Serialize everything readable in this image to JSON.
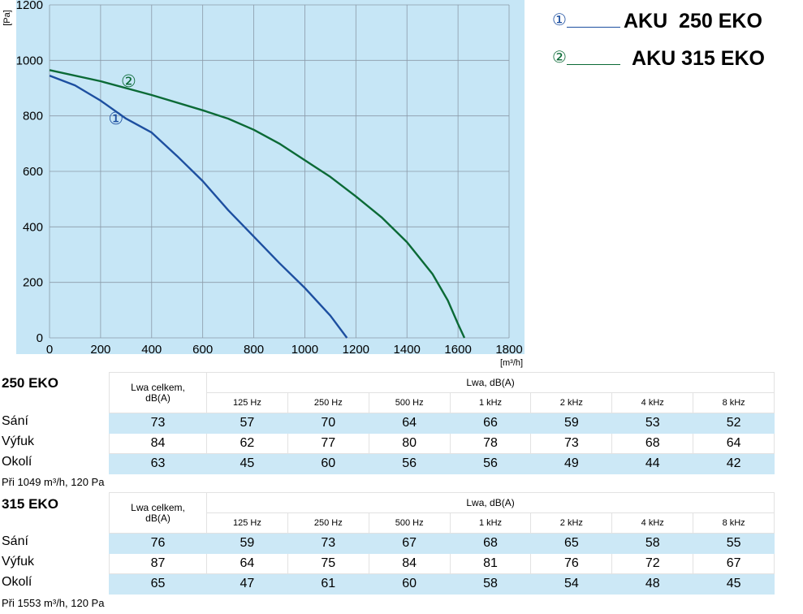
{
  "chart_data": {
    "type": "line",
    "ylabel": "[Pa]",
    "xlabel": "[m³/h]",
    "xlim": [
      0,
      1800
    ],
    "ylim": [
      0,
      1200
    ],
    "xticks": [
      0,
      200,
      400,
      600,
      800,
      1000,
      1200,
      1400,
      1600,
      1800
    ],
    "yticks": [
      0,
      200,
      400,
      600,
      800,
      1000,
      1200
    ],
    "grid": true,
    "plot_background": "#c6e6f6",
    "series": [
      {
        "marker": "①",
        "color": "#1d4fa0",
        "points": [
          [
            0,
            945
          ],
          [
            100,
            910
          ],
          [
            200,
            855
          ],
          [
            300,
            790
          ],
          [
            400,
            740
          ],
          [
            500,
            655
          ],
          [
            600,
            565
          ],
          [
            700,
            460
          ],
          [
            800,
            365
          ],
          [
            900,
            270
          ],
          [
            1000,
            180
          ],
          [
            1100,
            80
          ],
          [
            1165,
            0
          ]
        ]
      },
      {
        "marker": "②",
        "color": "#0b6a36",
        "points": [
          [
            0,
            965
          ],
          [
            200,
            925
          ],
          [
            400,
            875
          ],
          [
            600,
            820
          ],
          [
            700,
            790
          ],
          [
            800,
            750
          ],
          [
            900,
            700
          ],
          [
            1000,
            640
          ],
          [
            1100,
            580
          ],
          [
            1200,
            510
          ],
          [
            1300,
            435
          ],
          [
            1400,
            345
          ],
          [
            1500,
            230
          ],
          [
            1560,
            135
          ],
          [
            1600,
            50
          ],
          [
            1625,
            0
          ]
        ]
      }
    ]
  },
  "legend": [
    {
      "num": "①",
      "name": "AKU  250 EKO",
      "color": "#1d4fa0"
    },
    {
      "num": "②",
      "name": " AKU 315 EKO",
      "color": "#0b6a36"
    }
  ],
  "tables": [
    {
      "title": "250 EKO",
      "lwa_total_header": "Lwa celkem, dB(A)",
      "lwa_header": "Lwa, dB(A)",
      "frequencies": [
        "125 Hz",
        "250 Hz",
        "500 Hz",
        "1 kHz",
        "2 kHz",
        "4 kHz",
        "8 kHz"
      ],
      "rows": [
        {
          "label": "Sání",
          "values": [
            "73",
            "57",
            "70",
            "64",
            "66",
            "59",
            "53",
            "52"
          ]
        },
        {
          "label": "Výfuk",
          "values": [
            "84",
            "62",
            "77",
            "80",
            "78",
            "73",
            "68",
            "64"
          ]
        },
        {
          "label": "Okolí",
          "values": [
            "63",
            "45",
            "60",
            "56",
            "56",
            "49",
            "44",
            "42"
          ]
        }
      ],
      "note": "Při 1049 m³/h, 120 Pa"
    },
    {
      "title": "315 EKO",
      "lwa_total_header": "Lwa celkem, dB(A)",
      "lwa_header": "Lwa, dB(A)",
      "frequencies": [
        "125 Hz",
        "250 Hz",
        "500 Hz",
        "1 kHz",
        "2 kHz",
        "4 kHz",
        "8 kHz"
      ],
      "rows": [
        {
          "label": "Sání",
          "values": [
            "76",
            "59",
            "73",
            "67",
            "68",
            "65",
            "58",
            "55"
          ]
        },
        {
          "label": "Výfuk",
          "values": [
            "87",
            "64",
            "75",
            "84",
            "81",
            "76",
            "72",
            "67"
          ]
        },
        {
          "label": "Okolí",
          "values": [
            "65",
            "47",
            "61",
            "60",
            "58",
            "54",
            "48",
            "45"
          ]
        }
      ],
      "note": "Při 1553 m³/h, 120 Pa"
    }
  ]
}
